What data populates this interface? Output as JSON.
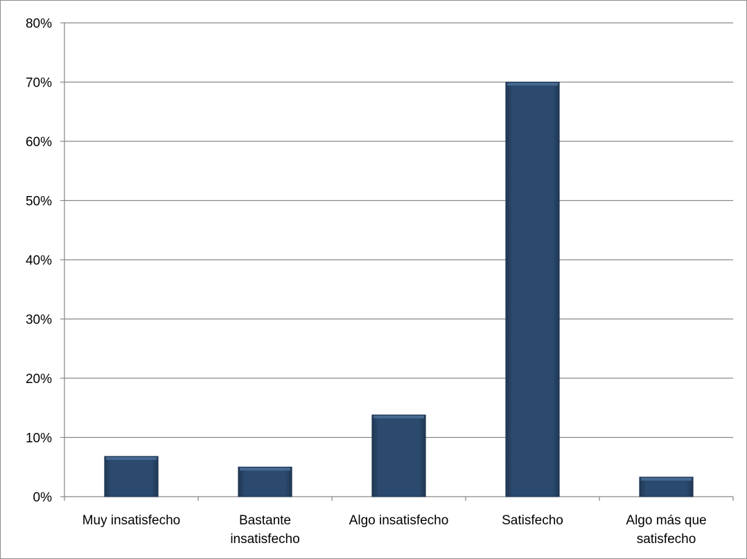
{
  "chart_data": {
    "type": "bar",
    "title": "",
    "xlabel": "",
    "ylabel": "",
    "categories": [
      [
        "Muy insatisfecho"
      ],
      [
        "Bastante",
        "insatisfecho"
      ],
      [
        "Algo insatisfecho"
      ],
      [
        "Satisfecho"
      ],
      [
        "Algo más que",
        "satisfecho"
      ]
    ],
    "values": [
      6.8,
      5.0,
      13.8,
      70.0,
      3.3
    ],
    "ylim": [
      0,
      80
    ],
    "yticks": [
      0,
      10,
      20,
      30,
      40,
      50,
      60,
      70,
      80
    ],
    "ytick_suffix": "%",
    "grid": true,
    "legend": "none",
    "colors": {
      "bar": "#2b4a6e",
      "bar_edge": "#1f3652",
      "bar_highlight": "#4a6d96",
      "grid": "#868686",
      "axis": "#868686"
    }
  }
}
